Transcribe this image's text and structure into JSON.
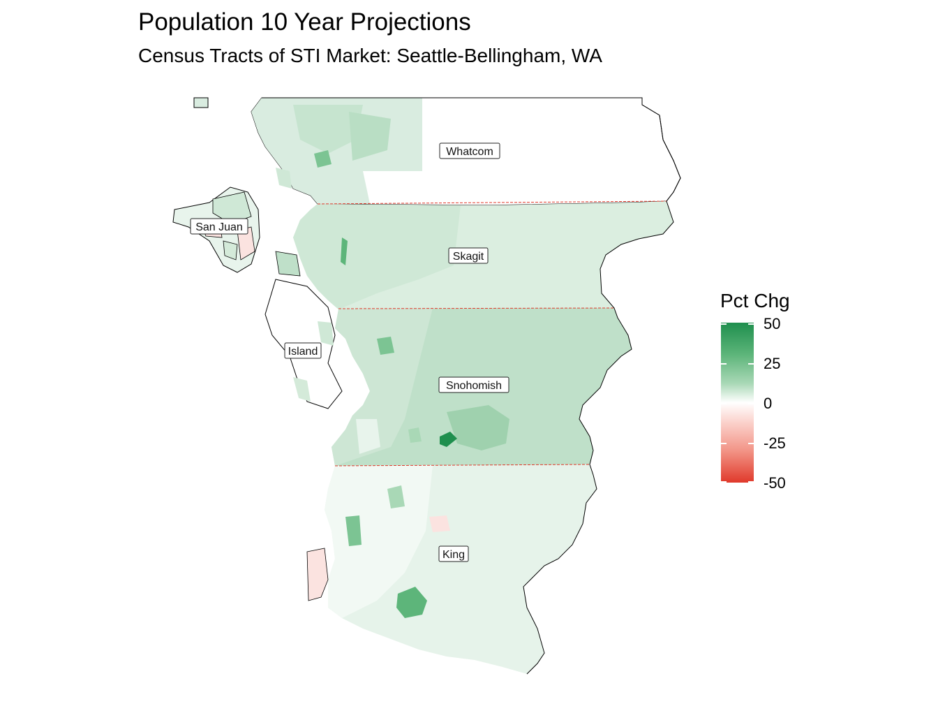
{
  "map": {
    "title": "Population 10 Year Projections",
    "subtitle": "Census Tracts of STI Market: Seattle-Bellingham, WA",
    "counties": [
      {
        "name": "Whatcom"
      },
      {
        "name": "San Juan"
      },
      {
        "name": "Skagit"
      },
      {
        "name": "Island"
      },
      {
        "name": "Snohomish"
      },
      {
        "name": "King"
      }
    ],
    "legend": {
      "title": "Pct Chg",
      "breaks": [
        "50",
        "25",
        "0",
        "-25",
        "-50"
      ],
      "high_color": "#1f8f4e",
      "mid_color": "#ffffff",
      "low_color": "#e0392b"
    },
    "colors": {
      "county_boundary": "#e0392b",
      "outline": "#000000",
      "light_green": "#dbeee0",
      "mid_green": "#bfe0c9",
      "dark_green": "#5db57a",
      "light_red": "#fbe3e0"
    }
  }
}
